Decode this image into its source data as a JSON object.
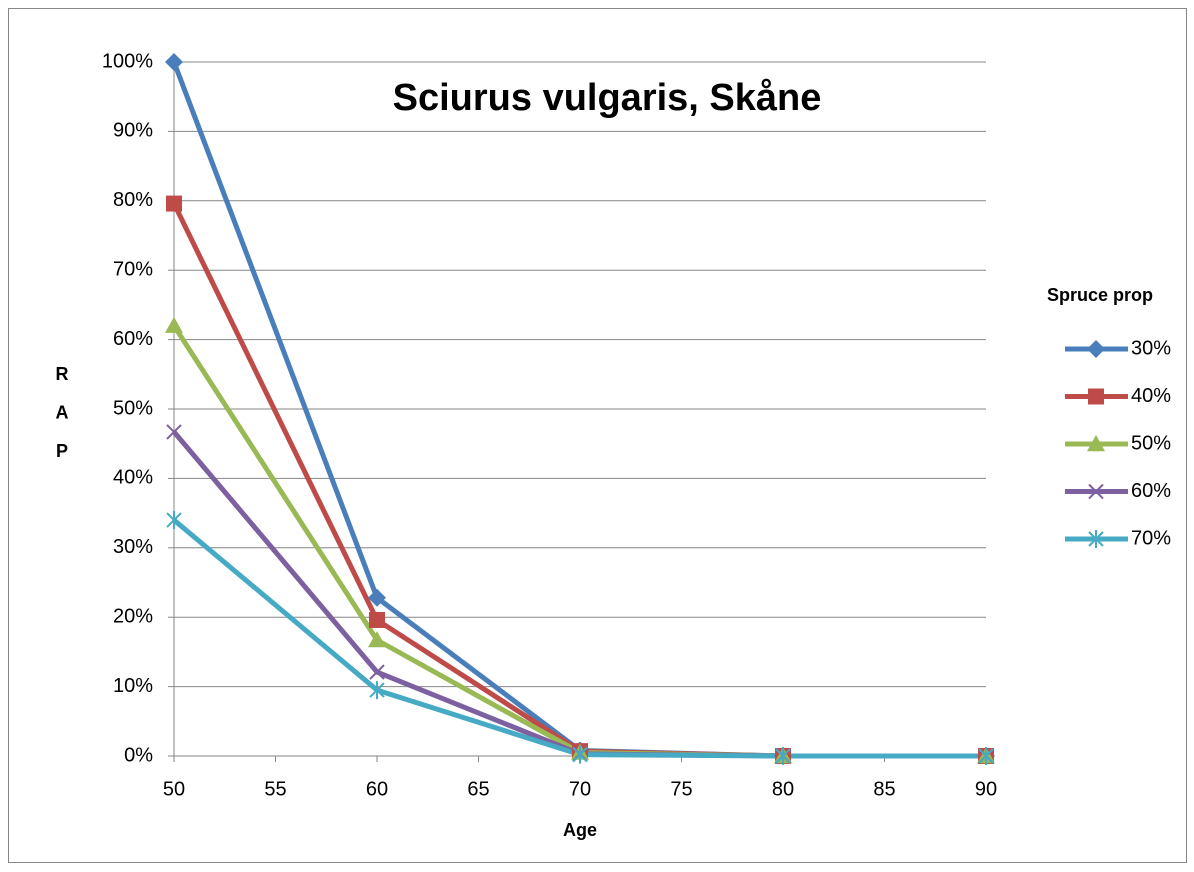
{
  "chart_data": {
    "type": "line",
    "title": "Sciurus vulgaris, Skåne",
    "xlabel": "Age",
    "ylabel": "RAP",
    "legend_title": "Spruce prop",
    "legend_position": "right",
    "grid": true,
    "x": [
      50,
      60,
      70,
      80,
      90
    ],
    "xlim": [
      50,
      90
    ],
    "xticks": [
      50,
      55,
      60,
      65,
      70,
      75,
      80,
      85,
      90
    ],
    "ylim": [
      0,
      100
    ],
    "yticks": [
      {
        "value": 0,
        "label": "0%"
      },
      {
        "value": 10,
        "label": "10%"
      },
      {
        "value": 20,
        "label": "20%"
      },
      {
        "value": 30,
        "label": "30%"
      },
      {
        "value": 40,
        "label": "40%"
      },
      {
        "value": 50,
        "label": "50%"
      },
      {
        "value": 60,
        "label": "60%"
      },
      {
        "value": 70,
        "label": "70%"
      },
      {
        "value": 80,
        "label": "80%"
      },
      {
        "value": 90,
        "label": "90%"
      },
      {
        "value": 100,
        "label": "100%"
      }
    ],
    "series": [
      {
        "name": "30%",
        "color": "#4a7ebb",
        "marker": "diamond",
        "values": [
          100,
          22.8,
          0.8,
          0,
          0
        ]
      },
      {
        "name": "40%",
        "color": "#be4b48",
        "marker": "square",
        "values": [
          79.6,
          19.6,
          0.7,
          0,
          0
        ]
      },
      {
        "name": "50%",
        "color": "#98b954",
        "marker": "triangle",
        "values": [
          62.0,
          16.7,
          0.5,
          0,
          0
        ]
      },
      {
        "name": "60%",
        "color": "#7d60a0",
        "marker": "x",
        "values": [
          46.7,
          12.1,
          0.3,
          0,
          0
        ]
      },
      {
        "name": "70%",
        "color": "#46aac5",
        "marker": "star",
        "values": [
          34.0,
          9.5,
          0.2,
          0,
          0
        ]
      }
    ]
  }
}
